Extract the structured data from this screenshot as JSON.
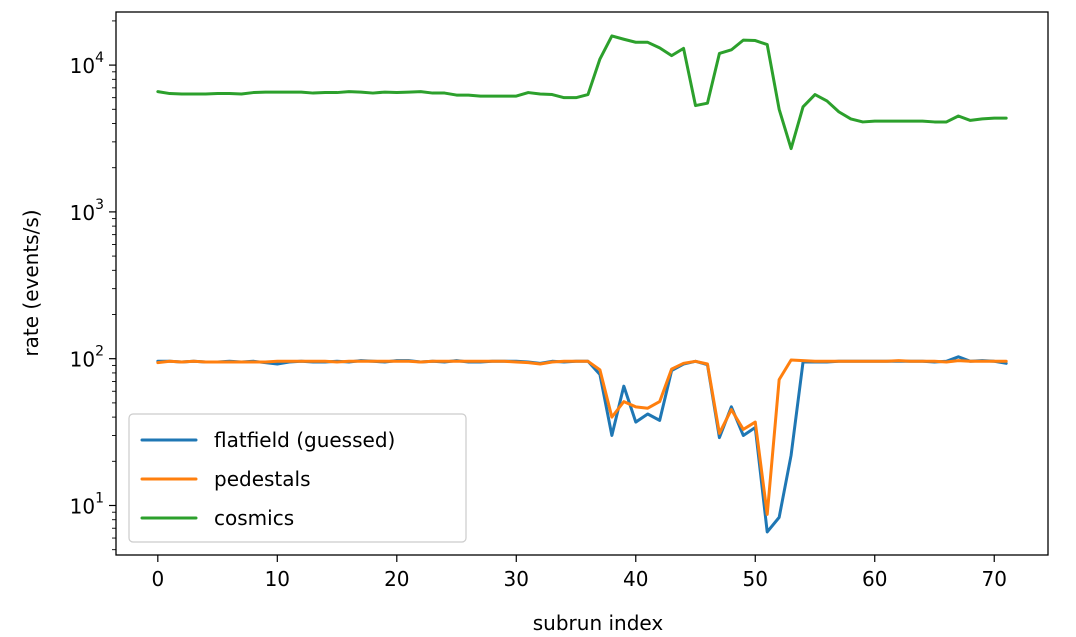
{
  "chart_data": {
    "type": "line",
    "xlabel": "subrun index",
    "ylabel": "rate (events/s)",
    "yscale": "log",
    "xlim": [
      -3.5,
      74.5
    ],
    "ylim": [
      4.6,
      23000
    ],
    "xticks": [
      0,
      10,
      20,
      30,
      40,
      50,
      60,
      70
    ],
    "yticks": [
      {
        "value": 10,
        "base": "10",
        "exp": "1"
      },
      {
        "value": 100,
        "base": "10",
        "exp": "2"
      },
      {
        "value": 1000,
        "base": "10",
        "exp": "3"
      },
      {
        "value": 10000,
        "base": "10",
        "exp": "4"
      }
    ],
    "grid": false,
    "legend_position": "lower-left",
    "series": [
      {
        "name": "flatfield (guessed)",
        "color": "#1f77b4",
        "x": [
          0,
          1,
          2,
          3,
          4,
          5,
          6,
          7,
          8,
          9,
          10,
          11,
          12,
          13,
          14,
          15,
          16,
          17,
          18,
          19,
          20,
          21,
          22,
          23,
          24,
          25,
          26,
          27,
          28,
          29,
          30,
          31,
          32,
          33,
          34,
          35,
          36,
          37,
          38,
          39,
          40,
          41,
          42,
          43,
          44,
          45,
          46,
          47,
          48,
          49,
          50,
          51,
          52,
          53,
          54,
          55,
          56,
          57,
          58,
          59,
          60,
          61,
          62,
          63,
          64,
          65,
          66,
          67,
          68,
          69,
          70,
          71
        ],
        "values": [
          96,
          96,
          95,
          96,
          95,
          95,
          96,
          95,
          96,
          94,
          92,
          95,
          96,
          95,
          95,
          96,
          95,
          97,
          96,
          95,
          97,
          97,
          95,
          96,
          95,
          97,
          95,
          95,
          96,
          96,
          96,
          95,
          93,
          96,
          95,
          96,
          96,
          78,
          30,
          65,
          37,
          42,
          38,
          83,
          92,
          96,
          91,
          29,
          47,
          30,
          34,
          6.6,
          8.3,
          22,
          95,
          95,
          95,
          96,
          96,
          96,
          96,
          96,
          96,
          96,
          96,
          95,
          96,
          103,
          96,
          97,
          96,
          93
        ]
      },
      {
        "name": "pedestals",
        "color": "#ff7f0e",
        "x": [
          0,
          1,
          2,
          3,
          4,
          5,
          6,
          7,
          8,
          9,
          10,
          11,
          12,
          13,
          14,
          15,
          16,
          17,
          18,
          19,
          20,
          21,
          22,
          23,
          24,
          25,
          26,
          27,
          28,
          29,
          30,
          31,
          32,
          33,
          34,
          35,
          36,
          37,
          38,
          39,
          40,
          41,
          42,
          43,
          44,
          45,
          46,
          47,
          48,
          49,
          50,
          51,
          52,
          53,
          54,
          55,
          56,
          57,
          58,
          59,
          60,
          61,
          62,
          63,
          64,
          65,
          66,
          67,
          68,
          69,
          70,
          71
        ],
        "values": [
          94,
          96,
          95,
          96,
          95,
          95,
          95,
          95,
          95,
          95,
          96,
          96,
          96,
          96,
          96,
          95,
          96,
          96,
          96,
          96,
          96,
          96,
          95,
          96,
          96,
          96,
          96,
          96,
          96,
          96,
          95,
          94,
          92,
          95,
          96,
          96,
          96,
          84,
          40,
          51,
          47,
          46,
          51,
          85,
          93,
          96,
          92,
          31,
          45,
          33,
          37,
          8.7,
          72,
          98,
          97,
          96,
          96,
          96,
          96,
          96,
          96,
          96,
          97,
          96,
          96,
          96,
          95,
          97,
          96,
          96,
          96,
          96
        ]
      },
      {
        "name": "cosmics",
        "color": "#2ca02c",
        "x": [
          0,
          1,
          2,
          3,
          4,
          5,
          6,
          7,
          8,
          9,
          10,
          11,
          12,
          13,
          14,
          15,
          16,
          17,
          18,
          19,
          20,
          21,
          22,
          23,
          24,
          25,
          26,
          27,
          28,
          29,
          30,
          31,
          32,
          33,
          34,
          35,
          36,
          37,
          38,
          39,
          40,
          41,
          42,
          43,
          44,
          45,
          46,
          47,
          48,
          49,
          50,
          51,
          52,
          53,
          54,
          55,
          56,
          57,
          58,
          59,
          60,
          61,
          62,
          63,
          64,
          65,
          66,
          67,
          68,
          69,
          70,
          71
        ],
        "values": [
          6600,
          6400,
          6350,
          6350,
          6350,
          6400,
          6400,
          6350,
          6500,
          6550,
          6550,
          6550,
          6550,
          6450,
          6500,
          6500,
          6600,
          6550,
          6450,
          6550,
          6500,
          6550,
          6600,
          6450,
          6450,
          6250,
          6250,
          6150,
          6150,
          6150,
          6150,
          6500,
          6350,
          6300,
          6000,
          6000,
          6300,
          11000,
          15800,
          15000,
          14300,
          14300,
          13100,
          11600,
          13000,
          5300,
          5500,
          12000,
          12700,
          14800,
          14700,
          13800,
          5000,
          2700,
          5200,
          6300,
          5700,
          4800,
          4300,
          4100,
          4150,
          4150,
          4150,
          4150,
          4150,
          4100,
          4100,
          4500,
          4200,
          4300,
          4350,
          4350
        ]
      }
    ]
  }
}
